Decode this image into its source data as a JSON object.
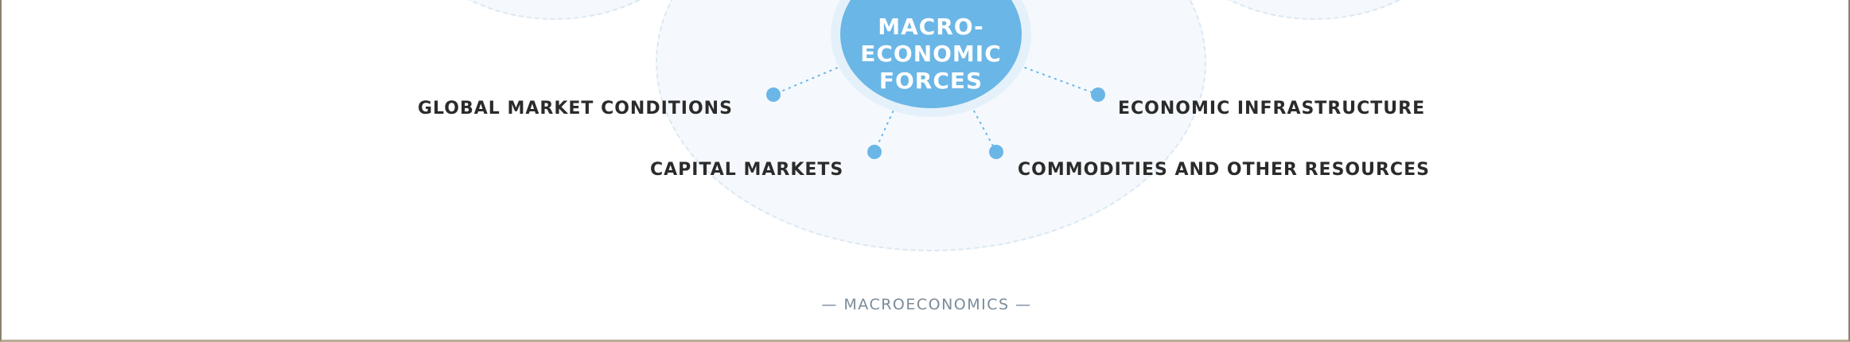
{
  "diagram": {
    "center": {
      "lines": [
        "MACRO-",
        "ECONOMIC",
        "FORCES"
      ]
    },
    "nodes": [
      {
        "label": "GLOBAL MARKET CONDITIONS"
      },
      {
        "label": "CAPITAL MARKETS"
      },
      {
        "label": "ECONOMIC INFRASTRUCTURE"
      },
      {
        "label": "COMMODITIES AND OTHER RESOURCES"
      }
    ],
    "caption": "MACROECONOMICS"
  },
  "colors": {
    "hub": "#6ab6e6",
    "dot": "#6ab6e6",
    "connector": "#6ab6e6",
    "label_text": "#2b2b2b",
    "caption_text": "#7c8b99"
  }
}
